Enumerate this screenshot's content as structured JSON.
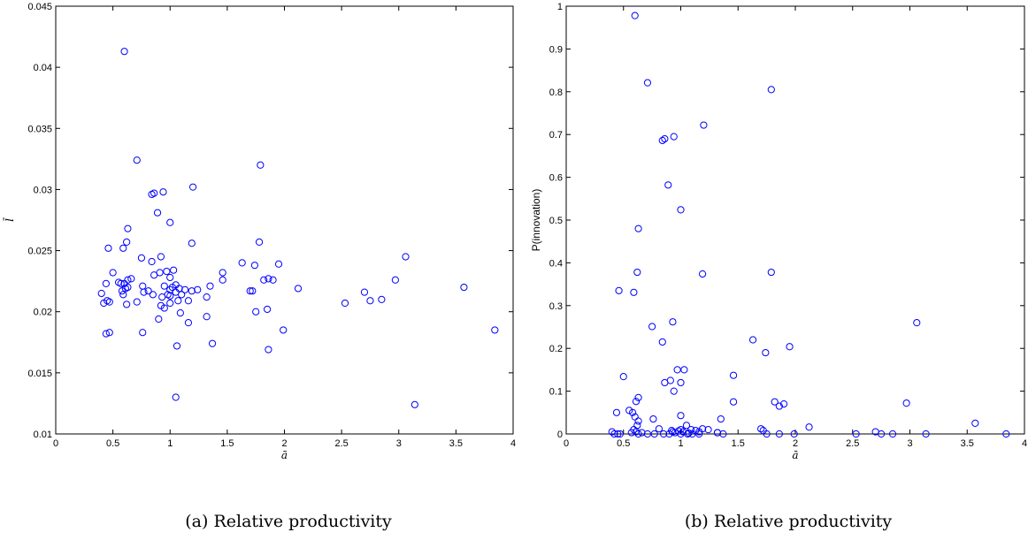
{
  "chart_data": [
    {
      "type": "scatter",
      "title": "",
      "xlabel": "ā",
      "ylabel": "l̄",
      "xlim": [
        0,
        4
      ],
      "ylim": [
        0.01,
        0.045
      ],
      "xticks": [
        0,
        0.5,
        1,
        1.5,
        2,
        2.5,
        3,
        3.5,
        4
      ],
      "yticks": [
        0.01,
        0.015,
        0.02,
        0.025,
        0.03,
        0.035,
        0.04,
        0.045
      ],
      "xtick_labels": [
        "0",
        "0.5",
        "1",
        "1.5",
        "2",
        "2.5",
        "3",
        "3.5",
        "4"
      ],
      "ytick_labels": [
        "0.01",
        "0.015",
        "0.02",
        "0.025",
        "0.03",
        "0.035",
        "0.04",
        "0.045"
      ],
      "marker_color": "#0000ff",
      "caption": "(a) Relative productivity",
      "points": [
        [
          0.6,
          0.0413
        ],
        [
          0.71,
          0.0324
        ],
        [
          1.79,
          0.032
        ],
        [
          1.2,
          0.0302
        ],
        [
          0.84,
          0.0296
        ],
        [
          0.86,
          0.0297
        ],
        [
          0.94,
          0.0298
        ],
        [
          0.89,
          0.0281
        ],
        [
          1.0,
          0.0273
        ],
        [
          0.63,
          0.0268
        ],
        [
          0.62,
          0.0257
        ],
        [
          0.46,
          0.0252
        ],
        [
          0.59,
          0.0252
        ],
        [
          1.19,
          0.0256
        ],
        [
          1.78,
          0.0257
        ],
        [
          0.75,
          0.0244
        ],
        [
          0.92,
          0.0245
        ],
        [
          3.06,
          0.0245
        ],
        [
          1.63,
          0.024
        ],
        [
          0.84,
          0.0241
        ],
        [
          1.74,
          0.0238
        ],
        [
          1.95,
          0.0239
        ],
        [
          0.5,
          0.0232
        ],
        [
          0.86,
          0.023
        ],
        [
          0.91,
          0.0232
        ],
        [
          0.97,
          0.0233
        ],
        [
          1.03,
          0.0234
        ],
        [
          1.46,
          0.0232
        ],
        [
          0.55,
          0.0224
        ],
        [
          0.57,
          0.0223
        ],
        [
          0.6,
          0.0223
        ],
        [
          0.63,
          0.0226
        ],
        [
          0.66,
          0.0227
        ],
        [
          0.44,
          0.0223
        ],
        [
          1.0,
          0.0228
        ],
        [
          1.46,
          0.0226
        ],
        [
          1.82,
          0.0226
        ],
        [
          1.86,
          0.0227
        ],
        [
          1.9,
          0.0226
        ],
        [
          2.97,
          0.0226
        ],
        [
          0.58,
          0.0217
        ],
        [
          0.61,
          0.0219
        ],
        [
          0.63,
          0.022
        ],
        [
          0.76,
          0.0221
        ],
        [
          0.81,
          0.0217
        ],
        [
          0.95,
          0.0221
        ],
        [
          1.0,
          0.0218
        ],
        [
          1.02,
          0.022
        ],
        [
          1.05,
          0.0222
        ],
        [
          1.08,
          0.0219
        ],
        [
          1.13,
          0.0218
        ],
        [
          1.19,
          0.0217
        ],
        [
          1.24,
          0.0218
        ],
        [
          1.35,
          0.0221
        ],
        [
          1.7,
          0.0217
        ],
        [
          1.72,
          0.0217
        ],
        [
          2.12,
          0.0219
        ],
        [
          3.57,
          0.022
        ],
        [
          2.7,
          0.0216
        ],
        [
          0.4,
          0.0215
        ],
        [
          0.59,
          0.0214
        ],
        [
          0.85,
          0.0214
        ],
        [
          0.93,
          0.0212
        ],
        [
          0.98,
          0.0214
        ],
        [
          1.0,
          0.0213
        ],
        [
          1.05,
          0.0216
        ],
        [
          1.1,
          0.0214
        ],
        [
          1.32,
          0.0212
        ],
        [
          0.42,
          0.0207
        ],
        [
          0.45,
          0.0209
        ],
        [
          0.47,
          0.0208
        ],
        [
          0.62,
          0.0206
        ],
        [
          0.71,
          0.0208
        ],
        [
          0.92,
          0.0205
        ],
        [
          0.95,
          0.0203
        ],
        [
          1.0,
          0.0207
        ],
        [
          1.07,
          0.0209
        ],
        [
          1.16,
          0.0209
        ],
        [
          0.77,
          0.0216
        ],
        [
          2.53,
          0.0207
        ],
        [
          2.75,
          0.0209
        ],
        [
          2.85,
          0.021
        ],
        [
          1.09,
          0.0199
        ],
        [
          1.32,
          0.0196
        ],
        [
          1.75,
          0.02
        ],
        [
          1.85,
          0.0202
        ],
        [
          0.9,
          0.0194
        ],
        [
          1.16,
          0.0191
        ],
        [
          1.99,
          0.0185
        ],
        [
          0.44,
          0.0182
        ],
        [
          0.47,
          0.0183
        ],
        [
          0.76,
          0.0183
        ],
        [
          3.84,
          0.0185
        ],
        [
          1.06,
          0.0172
        ],
        [
          1.37,
          0.0174
        ],
        [
          1.86,
          0.0169
        ],
        [
          1.05,
          0.013
        ],
        [
          3.14,
          0.0124
        ]
      ]
    },
    {
      "type": "scatter",
      "title": "",
      "xlabel": "ā",
      "ylabel": "P(innovation)",
      "xlim": [
        0,
        4
      ],
      "ylim": [
        0,
        1
      ],
      "xticks": [
        0,
        0.5,
        1,
        1.5,
        2,
        2.5,
        3,
        3.5,
        4
      ],
      "yticks": [
        0,
        0.1,
        0.2,
        0.3,
        0.4,
        0.5,
        0.6,
        0.7,
        0.8,
        0.9,
        1
      ],
      "xtick_labels": [
        "0",
        "0.5",
        "1",
        "1.5",
        "2",
        "2.5",
        "3",
        "3.5",
        "4"
      ],
      "ytick_labels": [
        "0",
        "0.1",
        "0.2",
        "0.3",
        "0.4",
        "0.5",
        "0.6",
        "0.7",
        "0.8",
        "0.9",
        "1"
      ],
      "marker_color": "#0000ff",
      "caption": "(b) Relative productivity",
      "points": [
        [
          0.6,
          0.978
        ],
        [
          0.71,
          0.821
        ],
        [
          1.79,
          0.805
        ],
        [
          1.2,
          0.722
        ],
        [
          0.84,
          0.686
        ],
        [
          0.86,
          0.69
        ],
        [
          0.94,
          0.695
        ],
        [
          0.89,
          0.582
        ],
        [
          1.0,
          0.524
        ],
        [
          0.63,
          0.48
        ],
        [
          0.62,
          0.378
        ],
        [
          1.79,
          0.378
        ],
        [
          1.19,
          0.374
        ],
        [
          0.46,
          0.335
        ],
        [
          0.59,
          0.331
        ],
        [
          0.93,
          0.262
        ],
        [
          3.06,
          0.26
        ],
        [
          0.75,
          0.251
        ],
        [
          1.63,
          0.22
        ],
        [
          0.84,
          0.215
        ],
        [
          1.95,
          0.204
        ],
        [
          1.74,
          0.19
        ],
        [
          0.97,
          0.15
        ],
        [
          1.03,
          0.15
        ],
        [
          1.46,
          0.137
        ],
        [
          0.5,
          0.134
        ],
        [
          0.91,
          0.125
        ],
        [
          0.86,
          0.12
        ],
        [
          1.0,
          0.12
        ],
        [
          0.94,
          0.1
        ],
        [
          0.63,
          0.085
        ],
        [
          0.61,
          0.076
        ],
        [
          1.82,
          0.075
        ],
        [
          1.9,
          0.07
        ],
        [
          1.86,
          0.065
        ],
        [
          2.97,
          0.072
        ],
        [
          0.55,
          0.055
        ],
        [
          0.58,
          0.05
        ],
        [
          0.44,
          0.05
        ],
        [
          1.0,
          0.043
        ],
        [
          0.6,
          0.04
        ],
        [
          0.63,
          0.03
        ],
        [
          0.76,
          0.035
        ],
        [
          1.35,
          0.035
        ],
        [
          0.62,
          0.02
        ],
        [
          3.57,
          0.025
        ],
        [
          1.46,
          0.075
        ],
        [
          0.71,
          0.0
        ],
        [
          0.4,
          0.005
        ],
        [
          0.42,
          0.0
        ],
        [
          0.45,
          0.0
        ],
        [
          0.47,
          0.0
        ],
        [
          0.59,
          0.01
        ],
        [
          0.61,
          0.005
        ],
        [
          0.66,
          0.003
        ],
        [
          0.77,
          0.0
        ],
        [
          0.81,
          0.012
        ],
        [
          0.85,
          0.0
        ],
        [
          0.9,
          0.0
        ],
        [
          0.93,
          0.005
        ],
        [
          0.95,
          0.003
        ],
        [
          0.98,
          0.007
        ],
        [
          1.0,
          0.01
        ],
        [
          1.02,
          0.005
        ],
        [
          1.05,
          0.02
        ],
        [
          1.07,
          0.002
        ],
        [
          1.09,
          0.01
        ],
        [
          1.13,
          0.008
        ],
        [
          1.16,
          0.005
        ],
        [
          1.19,
          0.012
        ],
        [
          1.24,
          0.01
        ],
        [
          1.32,
          0.003
        ],
        [
          1.37,
          0.0
        ],
        [
          1.7,
          0.012
        ],
        [
          1.72,
          0.008
        ],
        [
          1.75,
          0.0
        ],
        [
          1.86,
          0.0
        ],
        [
          1.99,
          0.0
        ],
        [
          2.12,
          0.016
        ],
        [
          2.53,
          0.0
        ],
        [
          2.7,
          0.005
        ],
        [
          2.75,
          0.0
        ],
        [
          2.85,
          0.0
        ],
        [
          3.14,
          0.0
        ],
        [
          3.84,
          0.0
        ],
        [
          0.57,
          0.003
        ],
        [
          0.63,
          0.0
        ],
        [
          1.06,
          0.0
        ],
        [
          1.1,
          0.0
        ],
        [
          1.0,
          0.0
        ],
        [
          0.92,
          0.008
        ],
        [
          1.16,
          0.0
        ],
        [
          1.32,
          0.003
        ]
      ]
    }
  ]
}
